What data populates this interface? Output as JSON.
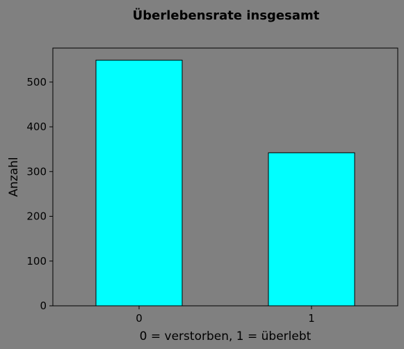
{
  "chart_data": {
    "type": "bar",
    "title": "Überlebensrate insgesamt",
    "xlabel": "0 = verstorben, 1 = überlebt",
    "ylabel": "Anzahl",
    "categories": [
      "0",
      "1"
    ],
    "values": [
      549,
      342
    ],
    "ylim": [
      0,
      576
    ],
    "yticks": [
      0,
      100,
      200,
      300,
      400,
      500
    ],
    "grid": false,
    "legend": "none",
    "colors": {
      "background": "#808080",
      "bar_fill": "#00ffff",
      "bar_edge": "#000000",
      "axis": "#000000"
    }
  }
}
